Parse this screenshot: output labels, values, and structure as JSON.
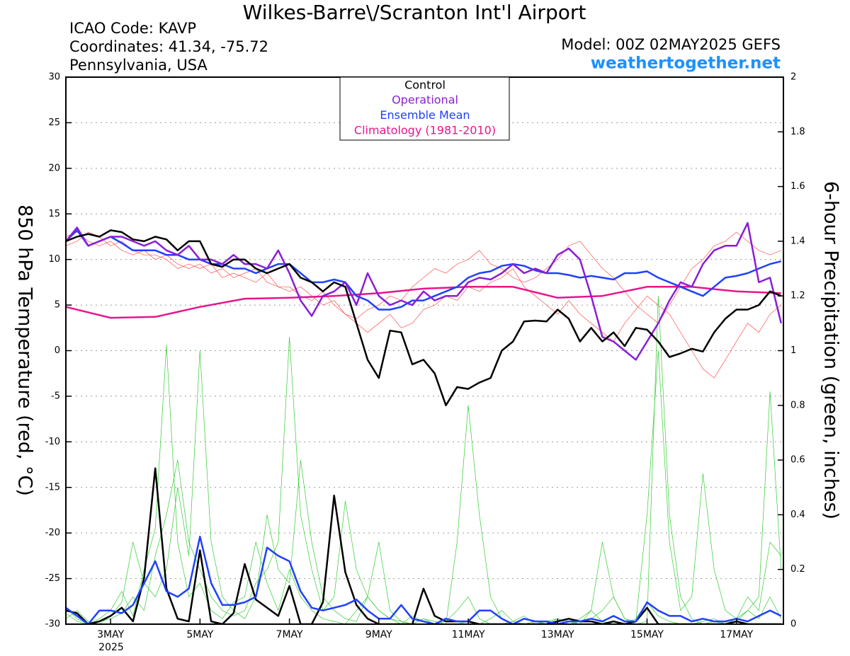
{
  "chart_data": {
    "type": "line",
    "title": "Wilkes-Barre\\/Scranton Int'l Airport",
    "info": [
      "ICAO Code: KAVP",
      "Coordinates: 41.34, -75.72",
      "Pennsylvania, USA"
    ],
    "model": "Model: 00Z 02MAY2025 GEFS",
    "source": "weathertogether.net",
    "ylabel": "850 hPa Temperature (red, °C)",
    "y2label": "6-hour Precipitation (green, inches)",
    "xlim": [
      2,
      18.05
    ],
    "xticks": [
      {
        "value": 3,
        "label": "3MAY"
      },
      {
        "value": 5,
        "label": "5MAY"
      },
      {
        "value": 7,
        "label": "7MAY"
      },
      {
        "value": 9,
        "label": "9MAY"
      },
      {
        "value": 11,
        "label": "11MAY"
      },
      {
        "value": 13,
        "label": "13MAY"
      },
      {
        "value": 15,
        "label": "15MAY"
      },
      {
        "value": 17,
        "label": "17MAY"
      }
    ],
    "xtick_year": "2025",
    "ylim": [
      -30,
      30
    ],
    "yticks": [
      -30,
      -25,
      -20,
      -15,
      -10,
      -5,
      0,
      5,
      10,
      15,
      20,
      25,
      30
    ],
    "y2lim": [
      0,
      2
    ],
    "y2ticks": [
      0,
      0.2,
      0.4,
      0.6,
      0.8,
      1,
      1.2,
      1.4,
      1.6,
      1.8,
      2
    ],
    "grid": true,
    "x": [
      2,
      2.25,
      2.5,
      2.75,
      3,
      3.25,
      3.5,
      3.75,
      4,
      4.25,
      4.5,
      4.75,
      5,
      5.25,
      5.5,
      5.75,
      6,
      6.25,
      6.5,
      6.75,
      7,
      7.25,
      7.5,
      7.75,
      8,
      8.25,
      8.5,
      8.75,
      9,
      9.25,
      9.5,
      9.75,
      10,
      10.25,
      10.5,
      10.75,
      11,
      11.25,
      11.5,
      11.75,
      12,
      12.25,
      12.5,
      12.75,
      13,
      13.25,
      13.5,
      13.75,
      14,
      14.25,
      14.5,
      14.75,
      15,
      15.25,
      15.5,
      15.75,
      16,
      16.25,
      16.5,
      16.75,
      17,
      17.25,
      17.5,
      17.75,
      18
    ],
    "series": [
      {
        "color": "#ff5050",
        "values": [
          12.5,
          13,
          12,
          11.5,
          12,
          11,
          10.5,
          11,
          10,
          10.5,
          9.5,
          9,
          9.5,
          8.5,
          9,
          8,
          8.5,
          9,
          7.5,
          7,
          7,
          6,
          5.5,
          6.5,
          5,
          4,
          3.5,
          4.5,
          5,
          6,
          5.5,
          7,
          8,
          9,
          8.5,
          9.5,
          10,
          11,
          9.5,
          9,
          8,
          7.5,
          8,
          9,
          10,
          11.5,
          12,
          10.5,
          9,
          8,
          6.5,
          5,
          4,
          3,
          5,
          7,
          9,
          10,
          11.5,
          12,
          13,
          12,
          11,
          10.5,
          11
        ]
      },
      {
        "color": "#ff5050",
        "values": [
          11.5,
          12,
          13,
          12.5,
          11.5,
          12,
          11,
          10.5,
          10.5,
          10,
          9,
          9.5,
          9,
          9.5,
          8,
          8.5,
          8,
          7.5,
          8.5,
          7,
          6.5,
          7,
          6,
          5,
          5.5,
          4,
          3,
          2,
          3,
          4,
          2.5,
          3,
          4.5,
          5,
          6,
          5.5,
          7,
          6.5,
          7.5,
          8,
          9,
          7,
          6,
          5,
          4,
          5.5,
          4,
          3,
          2,
          1,
          3,
          4.5,
          6,
          5,
          4,
          2,
          0,
          -2,
          -3,
          -1,
          1,
          3,
          2,
          4,
          5
        ]
      },
      {
        "color": "#33cc33",
        "axis": "y2",
        "values": [
          0.04,
          0.01,
          0,
          0.02,
          0.05,
          0.12,
          0.03,
          0.2,
          0.35,
          1.02,
          0.3,
          0.1,
          0.15,
          0.05,
          0.02,
          0.08,
          0.1,
          0.3,
          0.15,
          0.05,
          0.2,
          0.1,
          0.05,
          0.02,
          0.01,
          0,
          0.05,
          0.1,
          0.3,
          0.05,
          0.01,
          0,
          0.02,
          0,
          0.01,
          0.05,
          0.1,
          0.02,
          0,
          0,
          0.01,
          0.03,
          0,
          0,
          0,
          0.01,
          0.02,
          0.05,
          0.01,
          0,
          0,
          0.02,
          0.08,
          0.03,
          0.01,
          0,
          0,
          0.01,
          0.02,
          0,
          0.01,
          0.05,
          0.02,
          0.1,
          0.02
        ]
      },
      {
        "color": "#33cc33",
        "axis": "y2",
        "values": [
          0.02,
          0.05,
          0.01,
          0,
          0.03,
          0.08,
          0.3,
          0.15,
          0.1,
          0.2,
          0.5,
          0.25,
          1.0,
          0.3,
          0.1,
          0.05,
          0.02,
          0.1,
          0.4,
          0.2,
          0.15,
          0.6,
          0.3,
          0.1,
          0.05,
          0.02,
          0.01,
          0.1,
          0.05,
          0.02,
          0,
          0.03,
          0.01,
          0,
          0,
          0.3,
          0.8,
          0.4,
          0.1,
          0.02,
          0,
          0,
          0.01,
          0,
          0.02,
          0.01,
          0,
          0.05,
          0.3,
          0.1,
          0.02,
          0,
          0.01,
          1.2,
          0.4,
          0.1,
          0.02,
          0,
          0.01,
          0,
          0.02,
          0.05,
          0.1,
          0.85,
          0.2
        ]
      },
      {
        "color": "#33cc33",
        "axis": "y2",
        "values": [
          0.06,
          0.02,
          0,
          0.01,
          0.02,
          0.04,
          0.1,
          0.05,
          0.25,
          0.4,
          0.6,
          0.3,
          0.2,
          0.1,
          0.05,
          0.03,
          0.05,
          0.15,
          0.2,
          0.3,
          1.05,
          0.4,
          0.2,
          0.05,
          0.1,
          0.45,
          0.2,
          0.1,
          0.05,
          0.02,
          0.01,
          0,
          0.02,
          0.01,
          0,
          0,
          0.01,
          0,
          0.02,
          0.05,
          0.01,
          0,
          0,
          0.01,
          0.02,
          0,
          0.01,
          0.02,
          0.05,
          0.1,
          0.02,
          0.01,
          0.4,
          1.0,
          0.3,
          0.05,
          0.1,
          0.55,
          0.2,
          0.05,
          0.02,
          0.1,
          0.05,
          0.3,
          0.25
        ]
      },
      {
        "name": "Climatology (1981-2010)",
        "color": "#e8158c",
        "x": [
          2,
          3,
          4,
          5,
          6,
          7,
          8,
          9,
          10,
          11,
          12,
          13,
          14,
          15,
          16,
          17,
          18
        ],
        "values": [
          4.8,
          3.6,
          3.7,
          4.8,
          5.7,
          5.8,
          6,
          6.3,
          6.8,
          7,
          7,
          5.8,
          6,
          7,
          7,
          6.5,
          6.3
        ]
      },
      {
        "color": "#000000",
        "axis": "y2",
        "values": [
          0.05,
          0.04,
          0,
          0.01,
          0.03,
          0.06,
          0.01,
          0.17,
          0.57,
          0.13,
          0.02,
          0.01,
          0.27,
          0.01,
          0,
          0.04,
          0.22,
          0.09,
          0.06,
          0.03,
          0.14,
          0,
          0,
          0.08,
          0.47,
          0.19,
          0.07,
          0.02,
          0,
          0,
          0,
          0,
          0.13,
          0.03,
          0.01,
          0.01,
          0.01,
          0,
          0,
          0,
          0,
          0,
          0,
          0,
          0.01,
          0.02,
          0.01,
          0.01,
          0,
          0.01,
          0,
          0.01,
          0.06,
          0,
          0,
          0,
          0,
          0,
          0,
          0,
          0.01,
          0,
          0,
          0,
          0
        ]
      },
      {
        "color": "#2040ff",
        "axis": "y2",
        "values": [
          0.06,
          0.03,
          0,
          0.05,
          0.05,
          0.04,
          0.07,
          0.15,
          0.23,
          0.12,
          0.1,
          0.13,
          0.32,
          0.15,
          0.07,
          0.07,
          0.08,
          0.1,
          0.28,
          0.25,
          0.23,
          0.12,
          0.06,
          0.05,
          0.06,
          0.07,
          0.09,
          0.05,
          0.02,
          0.02,
          0.07,
          0.02,
          0.01,
          0,
          0.02,
          0.01,
          0.01,
          0.05,
          0.05,
          0.02,
          0,
          0.02,
          0.01,
          0.01,
          0,
          0.01,
          0.01,
          0.02,
          0.01,
          0.03,
          0.01,
          0.01,
          0.08,
          0.05,
          0.03,
          0.03,
          0.01,
          0.02,
          0.01,
          0.01,
          0.02,
          0.01,
          0.03,
          0.05,
          0.03
        ]
      },
      {
        "name": "Ensemble Mean",
        "color": "#2040ff",
        "values": [
          12,
          13.2,
          11.5,
          12,
          12.5,
          11.8,
          11,
          11,
          11,
          10.5,
          10.5,
          10,
          10,
          9.5,
          9.5,
          9,
          9,
          8.5,
          9,
          9.5,
          9.5,
          8.5,
          7.5,
          7.5,
          7.8,
          7.5,
          6,
          5.5,
          4.5,
          4.5,
          4.8,
          5.5,
          5.5,
          6,
          6.5,
          7,
          8,
          8.5,
          8.7,
          9.3,
          9.5,
          9.3,
          8.8,
          8.5,
          8.5,
          8.3,
          8,
          8.2,
          8,
          7.8,
          8.5,
          8.5,
          8.7,
          8,
          7.5,
          7,
          6.5,
          6,
          7,
          8,
          8.2,
          8.5,
          9,
          9.5,
          9.8
        ]
      },
      {
        "name": "Operational",
        "color": "#8a1fd6",
        "values": [
          12,
          13.5,
          11.5,
          12,
          12.5,
          12.5,
          12,
          11.5,
          12,
          11,
          10.5,
          11.5,
          10,
          10,
          9.5,
          10.5,
          9.5,
          9.5,
          9,
          11,
          8.5,
          5.5,
          3.8,
          6,
          6.5,
          7.5,
          5,
          8.5,
          6,
          5,
          5.5,
          5,
          6.5,
          5.5,
          6,
          6,
          7.5,
          8,
          7.8,
          8.5,
          9.5,
          8.5,
          9,
          8.5,
          10.5,
          11.2,
          10,
          6,
          1.5,
          1,
          0,
          -1,
          1,
          3,
          5.5,
          7.5,
          7,
          9.5,
          11,
          11.5,
          11.5,
          14,
          7.5,
          8,
          3
        ]
      },
      {
        "name": "Control",
        "color": "#000000",
        "values": [
          12,
          12.5,
          12.8,
          12.5,
          13.2,
          13,
          12.2,
          12,
          12.5,
          12.2,
          11,
          12,
          12,
          9.5,
          9.2,
          10,
          10,
          9,
          8.5,
          9,
          9.5,
          8,
          7.5,
          6.5,
          7.5,
          7,
          3,
          -1,
          -3,
          2.2,
          2,
          -1.5,
          -1,
          -2.5,
          -6,
          -4,
          -4.2,
          -3.5,
          -3,
          0,
          1,
          3.2,
          3.3,
          3.2,
          4.5,
          3.5,
          1,
          2.5,
          1,
          2,
          0.5,
          2.5,
          2.3,
          1,
          -0.7,
          -0.3,
          0.2,
          -0.1,
          2,
          3.5,
          4.5,
          4.5,
          5,
          6.5,
          6
        ]
      }
    ]
  }
}
